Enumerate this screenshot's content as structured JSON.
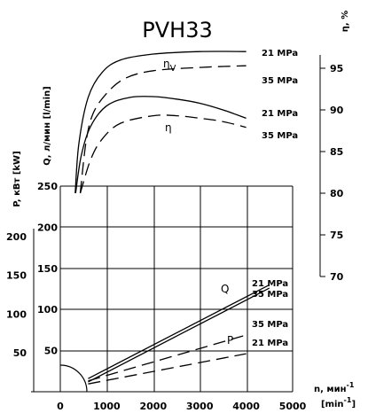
{
  "chart_data": {
    "type": "line",
    "title": "PVH33",
    "x_axis": {
      "label": "n, мин",
      "label_sup": "-1",
      "label_unit": "[min",
      "label_unit_sup": "-1",
      "label_unit_close": "]",
      "ticks": [
        0,
        1000,
        2000,
        3000,
        4000,
        5000
      ],
      "range": [
        0,
        5000
      ]
    },
    "y_axis_eta": {
      "label": "η, %",
      "ticks": [
        70,
        75,
        80,
        85,
        90,
        95
      ],
      "range": [
        70,
        98
      ]
    },
    "y_axis_q": {
      "label": "Q, л/мин [l/min]",
      "ticks": [
        50,
        100,
        150,
        200,
        250
      ],
      "range": [
        0,
        250
      ]
    },
    "y_axis_p": {
      "label": "P, кВт [kW]",
      "ticks": [
        50,
        100,
        150,
        200
      ],
      "range": [
        0,
        210
      ]
    },
    "curve_labels": {
      "eta_v": "η",
      "eta_v_sub": "V",
      "eta": "η",
      "q": "Q",
      "p": "P"
    },
    "pressure_labels": {
      "eta_v_21": "21 MPa",
      "eta_v_35": "35 MPa",
      "eta_21": "21 MPa",
      "eta_35": "35 MPa",
      "q_21": "21 MPa",
      "q_35": "35 MPa",
      "p_35": "35 MPa",
      "p_21": "21 MPa"
    },
    "series": [
      {
        "key": "eta_v_21",
        "axis": "eta",
        "dash": false,
        "x": [
          320,
          400,
          600,
          900,
          1300,
          2000,
          3000,
          4000
        ],
        "y": [
          80,
          86,
          91.5,
          94.5,
          96,
          96.7,
          97,
          97
        ]
      },
      {
        "key": "eta_v_35",
        "axis": "eta",
        "dash": true,
        "x": [
          430,
          550,
          700,
          1000,
          1400,
          2000,
          3000,
          4000
        ],
        "y": [
          80,
          86,
          89.5,
          92,
          93.8,
          94.7,
          95.1,
          95.3
        ]
      },
      {
        "key": "eta_21",
        "axis": "eta",
        "dash": false,
        "x": [
          330,
          450,
          650,
          1000,
          1500,
          2000,
          2500,
          3000,
          3500,
          4000
        ],
        "y": [
          80,
          84.5,
          88,
          90.5,
          91.5,
          91.6,
          91.3,
          90.8,
          90,
          89
        ]
      },
      {
        "key": "eta_35",
        "axis": "eta",
        "dash": true,
        "x": [
          430,
          650,
          900,
          1300,
          2000,
          2500,
          3000,
          3500,
          4000
        ],
        "y": [
          80,
          84,
          86.5,
          88.4,
          89.3,
          89.3,
          89,
          88.6,
          87.9
        ]
      },
      {
        "key": "q_21",
        "axis": "q",
        "dash": false,
        "x": [
          600,
          4500
        ],
        "y": [
          16,
          130
        ]
      },
      {
        "key": "q_35",
        "axis": "q",
        "dash": false,
        "x": [
          600,
          4500
        ],
        "y": [
          12,
          126
        ]
      },
      {
        "key": "p_35",
        "axis": "p",
        "dash": true,
        "x": [
          600,
          4000
        ],
        "y": [
          14,
          73
        ]
      },
      {
        "key": "p_21",
        "axis": "p",
        "dash": true,
        "x": [
          600,
          4000
        ],
        "y": [
          10,
          49
        ]
      }
    ]
  }
}
